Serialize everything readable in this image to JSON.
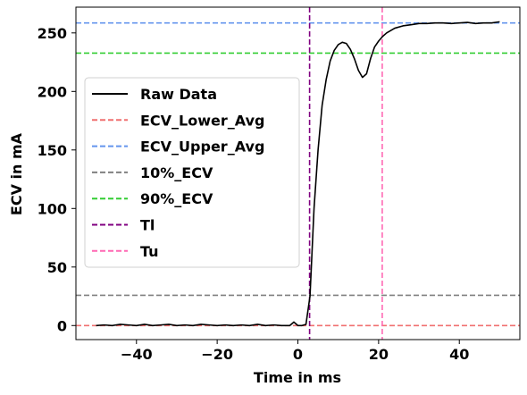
{
  "chart_data": {
    "type": "line",
    "title": "",
    "xlabel": "Time in ms",
    "ylabel": "ECV in mA",
    "xlim": [
      -55,
      55
    ],
    "ylim": [
      -12,
      272
    ],
    "xticks": [
      -40,
      -20,
      0,
      20,
      40
    ],
    "yticks": [
      0,
      50,
      100,
      150,
      200,
      250
    ],
    "grid": false,
    "legend_position": "center-left",
    "series": [
      {
        "name": "Raw Data",
        "color": "#000000",
        "style": "solid",
        "x": [
          -50,
          -48,
          -46,
          -44,
          -42,
          -40,
          -38,
          -36,
          -34,
          -32,
          -30,
          -28,
          -26,
          -24,
          -22,
          -20,
          -18,
          -16,
          -14,
          -12,
          -10,
          -8,
          -6,
          -4,
          -2,
          -1,
          0,
          1,
          2,
          3,
          4,
          5,
          6,
          7,
          8,
          9,
          10,
          11,
          12,
          13,
          14,
          15,
          16,
          17,
          18,
          19,
          20,
          21,
          22,
          23,
          24,
          26,
          28,
          30,
          32,
          34,
          36,
          38,
          40,
          42,
          44,
          46,
          48,
          50
        ],
        "y": [
          0,
          0.5,
          0,
          1,
          0.5,
          0,
          1,
          0,
          0.5,
          1,
          0,
          0.5,
          0,
          1,
          0.5,
          0,
          0.5,
          0,
          0.5,
          0,
          1,
          0,
          0.5,
          0,
          0,
          3,
          0,
          0,
          1,
          25,
          100,
          150,
          188,
          210,
          226,
          235,
          240,
          242,
          241,
          236,
          228,
          218,
          212,
          215,
          228,
          238,
          243,
          247,
          250,
          252,
          254,
          256,
          257,
          258,
          258,
          258.5,
          258.5,
          258,
          258.5,
          259,
          258,
          258.5,
          258.5,
          259.5
        ]
      }
    ],
    "reference_lines": [
      {
        "name": "ECV_Lower_Avg",
        "orientation": "horizontal",
        "value": 0,
        "color": "#f07070"
      },
      {
        "name": "ECV_Upper_Avg",
        "orientation": "horizontal",
        "value": 258.5,
        "color": "#6495ed"
      },
      {
        "name": "10%_ECV",
        "orientation": "horizontal",
        "value": 25.85,
        "color": "#808080"
      },
      {
        "name": "90%_ECV",
        "orientation": "horizontal",
        "value": 232.7,
        "color": "#32cd32"
      },
      {
        "name": "Tl",
        "orientation": "vertical",
        "value": 2.9,
        "color": "#800080"
      },
      {
        "name": "Tu",
        "orientation": "vertical",
        "value": 20.9,
        "color": "#ff69b4"
      }
    ]
  }
}
